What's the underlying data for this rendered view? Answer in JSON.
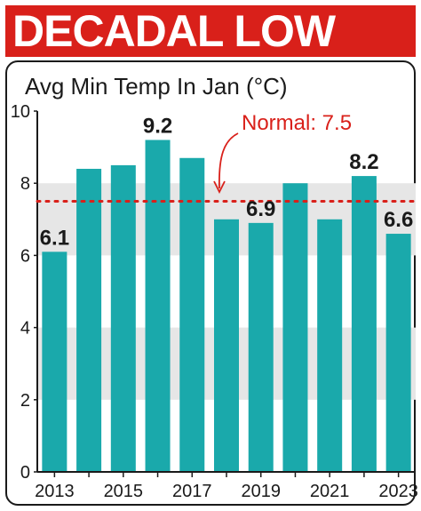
{
  "headline": "DECADAL LOW",
  "colors": {
    "headline_bg": "#d9201a",
    "bar": "#1aa9ab",
    "band": "#e6e6e6",
    "normal_line": "#d9201a"
  },
  "chart_data": {
    "type": "bar",
    "title": "Avg Min Temp In Jan (°C)",
    "categories": [
      "2013",
      "2014",
      "2015",
      "2016",
      "2017",
      "2018",
      "2019",
      "2020",
      "2021",
      "2022",
      "2023"
    ],
    "values": [
      6.1,
      8.4,
      8.5,
      9.2,
      8.7,
      7.0,
      6.9,
      8.0,
      7.0,
      8.2,
      6.6
    ],
    "data_labels": {
      "2013": "6.1",
      "2016": "9.2",
      "2019": "6.9",
      "2022": "8.2",
      "2023": "6.6"
    },
    "x_tick_labels": [
      "2013",
      "2015",
      "2017",
      "2019",
      "2021",
      "2023"
    ],
    "y_ticks": [
      0,
      2,
      4,
      6,
      8,
      10
    ],
    "ylim": [
      0,
      10
    ],
    "normal": {
      "label": "Normal: 7.5",
      "value": 7.5
    },
    "grid": "alternating horizontal bands"
  }
}
